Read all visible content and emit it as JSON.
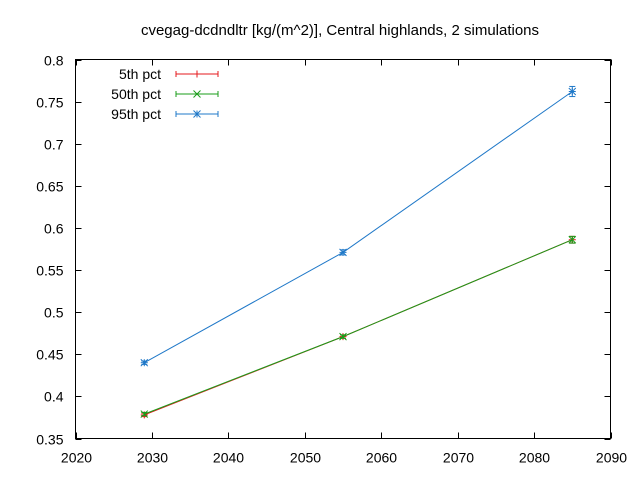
{
  "chart_data": {
    "type": "line",
    "title": "cvegag-dcdndltr [kg/(m^2)], Central highlands, 2 simulations",
    "xlabel": "",
    "ylabel": "",
    "xlim": [
      2020,
      2090
    ],
    "ylim": [
      0.35,
      0.8
    ],
    "x_ticks": [
      "2020",
      "2030",
      "2040",
      "2050",
      "2060",
      "2070",
      "2080",
      "2090"
    ],
    "y_ticks": [
      "0.35",
      "0.4",
      "0.45",
      "0.5",
      "0.55",
      "0.6",
      "0.65",
      "0.7",
      "0.75",
      "0.8"
    ],
    "x": [
      2029,
      2055,
      2085
    ],
    "grid": false,
    "legend_position": "top-left",
    "series": [
      {
        "name": "5th pct",
        "color": "#e41a1c",
        "marker": "plus",
        "values": [
          0.378,
          0.471,
          0.586
        ],
        "errors": [
          0.002,
          0.002,
          0.004
        ]
      },
      {
        "name": "50th pct",
        "color": "#1a9c1a",
        "marker": "cross",
        "values": [
          0.379,
          0.471,
          0.586
        ],
        "errors": [
          0.002,
          0.002,
          0.004
        ]
      },
      {
        "name": "95th pct",
        "color": "#1f78c8",
        "marker": "star",
        "values": [
          0.44,
          0.571,
          0.762
        ],
        "errors": [
          0.002,
          0.003,
          0.006
        ]
      }
    ]
  }
}
